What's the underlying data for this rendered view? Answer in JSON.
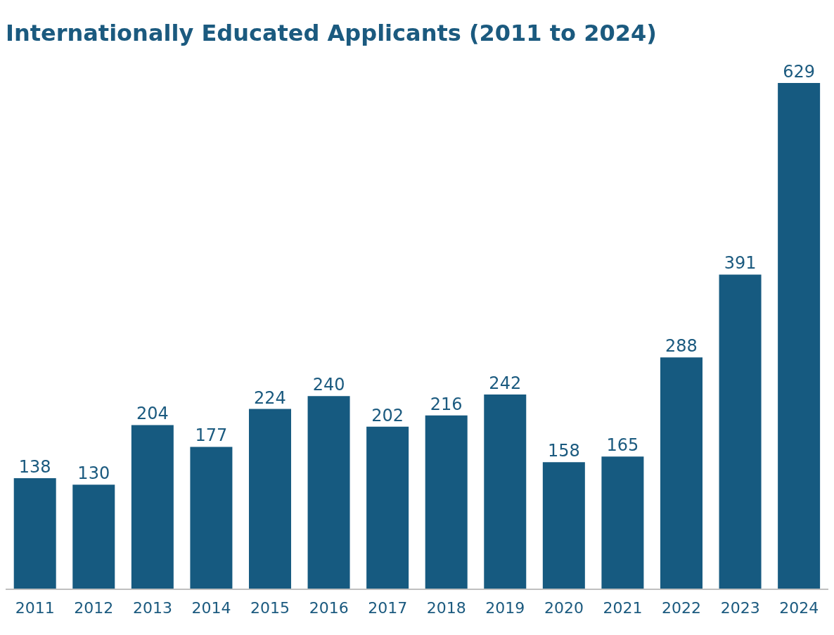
{
  "chart_data": {
    "type": "bar",
    "title": "Internationally Educated Applicants (2011 to 2024)",
    "categories": [
      "2011",
      "2012",
      "2013",
      "2014",
      "2015",
      "2016",
      "2017",
      "2018",
      "2019",
      "2020",
      "2021",
      "2022",
      "2023",
      "2024"
    ],
    "values": [
      138,
      130,
      204,
      177,
      224,
      240,
      202,
      216,
      242,
      158,
      165,
      288,
      391,
      629
    ],
    "color": "#165a80",
    "data_labels": true,
    "grid": false
  }
}
